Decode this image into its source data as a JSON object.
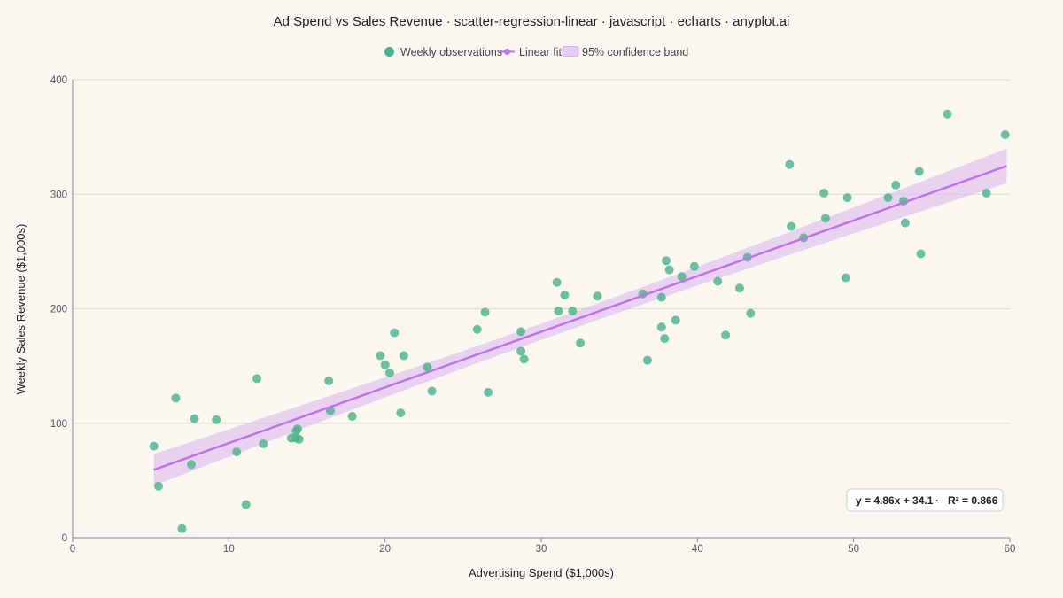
{
  "chart_data": {
    "type": "scatter",
    "title": "Ad Spend vs Sales Revenue · scatter-regression-linear · javascript · echarts · anyplot.ai",
    "xlabel": "Advertising Spend ($1,000s)",
    "ylabel": "Weekly Sales Revenue ($1,000s)",
    "xlim": [
      0,
      60
    ],
    "ylim": [
      0,
      400
    ],
    "x_ticks": [
      "0",
      "10",
      "20",
      "30",
      "40",
      "50",
      "60"
    ],
    "y_ticks": [
      "0",
      "100",
      "200",
      "300",
      "400"
    ],
    "grid": "horizontal",
    "legend_position": "top-center",
    "legend": {
      "points": "Weekly observations",
      "fit": "Linear fit",
      "band": "95% confidence band"
    },
    "colors": {
      "points": "#4db38a",
      "fit": "#c070e8",
      "band": "#d8b4ee"
    },
    "annotation": {
      "equation": "y = 4.86x + 34.1",
      "separator": "·",
      "r2": "R² = 0.866",
      "position": "bottom-right"
    },
    "fit": {
      "slope": 4.86,
      "intercept": 34.1,
      "x_range": [
        5.2,
        59.8
      ]
    },
    "series": [
      {
        "name": "Weekly observations",
        "points": [
          [
            5.2,
            80
          ],
          [
            5.5,
            45
          ],
          [
            6.6,
            122
          ],
          [
            7.0,
            8
          ],
          [
            7.6,
            64
          ],
          [
            7.8,
            104
          ],
          [
            9.2,
            103
          ],
          [
            10.5,
            75
          ],
          [
            11.1,
            29
          ],
          [
            11.8,
            139
          ],
          [
            12.2,
            82
          ],
          [
            14.0,
            87
          ],
          [
            14.3,
            87
          ],
          [
            14.3,
            93
          ],
          [
            14.4,
            95
          ],
          [
            14.5,
            86
          ],
          [
            16.4,
            137
          ],
          [
            16.5,
            111
          ],
          [
            17.9,
            106
          ],
          [
            19.7,
            159
          ],
          [
            20.0,
            151
          ],
          [
            20.3,
            144
          ],
          [
            20.6,
            179
          ],
          [
            21.0,
            109
          ],
          [
            21.2,
            159
          ],
          [
            22.7,
            149
          ],
          [
            23.0,
            128
          ],
          [
            25.9,
            182
          ],
          [
            26.4,
            197
          ],
          [
            26.6,
            127
          ],
          [
            28.7,
            180
          ],
          [
            28.7,
            163
          ],
          [
            28.9,
            156
          ],
          [
            31.0,
            223
          ],
          [
            31.1,
            198
          ],
          [
            31.5,
            212
          ],
          [
            32.0,
            198
          ],
          [
            32.5,
            170
          ],
          [
            33.6,
            211
          ],
          [
            36.5,
            213
          ],
          [
            36.8,
            155
          ],
          [
            37.7,
            210
          ],
          [
            37.7,
            184
          ],
          [
            37.9,
            174
          ],
          [
            38.0,
            242
          ],
          [
            38.2,
            234
          ],
          [
            38.6,
            190
          ],
          [
            39.0,
            228
          ],
          [
            39.8,
            237
          ],
          [
            41.3,
            224
          ],
          [
            41.8,
            177
          ],
          [
            42.7,
            218
          ],
          [
            43.2,
            245
          ],
          [
            43.4,
            196
          ],
          [
            45.9,
            326
          ],
          [
            46.0,
            272
          ],
          [
            46.8,
            262
          ],
          [
            48.1,
            301
          ],
          [
            48.2,
            279
          ],
          [
            49.5,
            227
          ],
          [
            49.6,
            297
          ],
          [
            52.2,
            297
          ],
          [
            52.7,
            308
          ],
          [
            53.2,
            294
          ],
          [
            53.3,
            275
          ],
          [
            54.2,
            320
          ],
          [
            54.3,
            248
          ],
          [
            56.0,
            370
          ],
          [
            58.5,
            301
          ],
          [
            59.7,
            352
          ]
        ]
      }
    ]
  }
}
